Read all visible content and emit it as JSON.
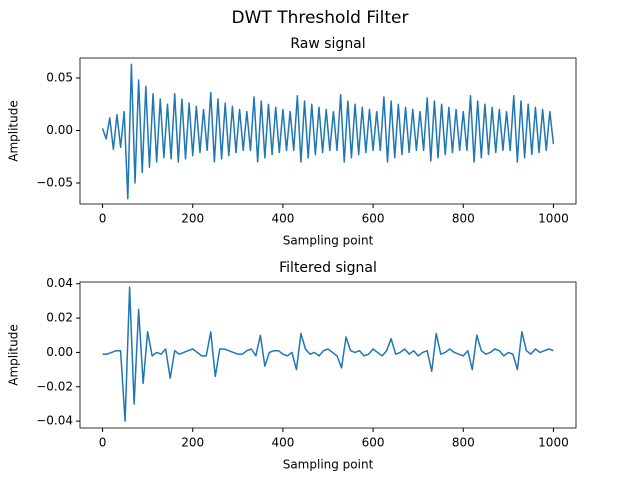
{
  "title": "DWT Threshold Filter",
  "chart_data": [
    {
      "type": "line",
      "title": "Raw signal",
      "xlabel": "Sampling point",
      "ylabel": "Amplitude",
      "xlim": [
        -50,
        1050
      ],
      "ylim": [
        -0.07,
        0.069
      ],
      "xticks": [
        0,
        200,
        400,
        600,
        800,
        1000
      ],
      "yticks": [
        {
          "value": -0.05,
          "label": "−0.05"
        },
        {
          "value": 0,
          "label": "0.00"
        },
        {
          "value": 0.05,
          "label": "0.05"
        }
      ],
      "grid": false,
      "x": [
        0,
        8,
        16,
        24,
        32,
        40,
        48,
        56,
        64,
        72,
        80,
        88,
        96,
        104,
        112,
        120,
        128,
        136,
        144,
        152,
        160,
        168,
        176,
        184,
        192,
        200,
        208,
        216,
        224,
        232,
        240,
        248,
        256,
        264,
        272,
        280,
        288,
        296,
        304,
        312,
        320,
        328,
        336,
        344,
        352,
        360,
        368,
        376,
        384,
        392,
        400,
        408,
        416,
        424,
        432,
        440,
        448,
        456,
        464,
        472,
        480,
        488,
        496,
        504,
        512,
        520,
        528,
        536,
        544,
        552,
        560,
        568,
        576,
        584,
        592,
        600,
        608,
        616,
        624,
        632,
        640,
        648,
        656,
        664,
        672,
        680,
        688,
        696,
        704,
        712,
        720,
        728,
        736,
        744,
        752,
        760,
        768,
        776,
        784,
        792,
        800,
        808,
        816,
        824,
        832,
        840,
        848,
        856,
        864,
        872,
        880,
        888,
        896,
        904,
        912,
        920,
        928,
        936,
        944,
        952,
        960,
        968,
        976,
        984,
        992,
        1000
      ],
      "series": [
        {
          "color": "#1f77b4",
          "values": [
            0.002,
            -0.008,
            0.012,
            -0.018,
            0.015,
            -0.016,
            0.018,
            -0.065,
            0.063,
            -0.05,
            0.048,
            -0.04,
            0.042,
            -0.035,
            0.035,
            -0.03,
            0.03,
            -0.026,
            0.025,
            -0.027,
            0.035,
            -0.03,
            0.03,
            -0.027,
            0.026,
            -0.024,
            0.023,
            -0.021,
            0.02,
            -0.019,
            0.036,
            -0.03,
            0.03,
            -0.027,
            0.026,
            -0.024,
            0.023,
            -0.021,
            0.02,
            -0.019,
            0.018,
            -0.019,
            0.032,
            -0.03,
            0.028,
            -0.026,
            0.025,
            -0.023,
            0.022,
            -0.021,
            0.02,
            -0.019,
            0.018,
            -0.019,
            0.033,
            -0.03,
            0.028,
            -0.026,
            0.025,
            -0.023,
            0.022,
            -0.021,
            0.02,
            -0.019,
            0.018,
            -0.019,
            0.034,
            -0.03,
            0.028,
            -0.026,
            0.025,
            -0.023,
            0.022,
            -0.021,
            0.02,
            -0.019,
            0.018,
            -0.019,
            0.032,
            -0.03,
            0.028,
            -0.026,
            0.025,
            -0.023,
            0.022,
            -0.021,
            0.02,
            -0.019,
            0.018,
            -0.019,
            0.031,
            -0.029,
            0.028,
            -0.026,
            0.025,
            -0.023,
            0.022,
            -0.021,
            0.02,
            -0.019,
            0.018,
            -0.019,
            0.033,
            -0.03,
            0.028,
            -0.026,
            0.025,
            -0.023,
            0.022,
            -0.021,
            0.02,
            -0.019,
            0.018,
            -0.019,
            0.033,
            -0.03,
            0.028,
            -0.026,
            0.025,
            -0.023,
            0.022,
            -0.021,
            0.02,
            -0.019,
            0.018,
            -0.013
          ]
        }
      ]
    },
    {
      "type": "line",
      "title": "Filtered signal",
      "xlabel": "Sampling point",
      "ylabel": "Amplitude",
      "xlim": [
        -50,
        1050
      ],
      "ylim": [
        -0.044,
        0.041
      ],
      "xticks": [
        0,
        200,
        400,
        600,
        800,
        1000
      ],
      "yticks": [
        {
          "value": -0.04,
          "label": "−0.04"
        },
        {
          "value": -0.02,
          "label": "−0.02"
        },
        {
          "value": 0,
          "label": "0.00"
        },
        {
          "value": 0.02,
          "label": "0.02"
        },
        {
          "value": 0.04,
          "label": "0.04"
        }
      ],
      "grid": false,
      "x": [
        0,
        10,
        20,
        30,
        40,
        50,
        60,
        70,
        80,
        90,
        100,
        110,
        120,
        130,
        140,
        150,
        160,
        170,
        180,
        190,
        200,
        210,
        220,
        230,
        240,
        250,
        260,
        270,
        280,
        290,
        300,
        310,
        320,
        330,
        340,
        350,
        360,
        370,
        380,
        390,
        400,
        410,
        420,
        430,
        440,
        450,
        460,
        470,
        480,
        490,
        500,
        510,
        520,
        530,
        540,
        550,
        560,
        570,
        580,
        590,
        600,
        610,
        620,
        630,
        640,
        650,
        660,
        670,
        680,
        690,
        700,
        710,
        720,
        730,
        740,
        750,
        760,
        770,
        780,
        790,
        800,
        810,
        820,
        830,
        840,
        850,
        860,
        870,
        880,
        890,
        900,
        910,
        920,
        930,
        940,
        950,
        960,
        970,
        980,
        990,
        1000
      ],
      "series": [
        {
          "color": "#1f77b4",
          "values": [
            -0.001,
            -0.001,
            0,
            0.001,
            0.001,
            -0.04,
            0.038,
            -0.03,
            0.025,
            -0.018,
            0.012,
            -0.002,
            0,
            -0.001,
            0.002,
            -0.015,
            0.001,
            -0.001,
            0,
            0.001,
            0.002,
            0,
            -0.002,
            -0.002,
            0.012,
            -0.014,
            0.002,
            0.002,
            0.001,
            0,
            -0.001,
            -0.001,
            0.001,
            0.002,
            -0.002,
            0.01,
            -0.008,
            0,
            0.001,
            0.001,
            -0.001,
            -0.002,
            0,
            -0.01,
            0.011,
            0.002,
            -0.001,
            0,
            -0.002,
            0.001,
            0.002,
            0,
            -0.002,
            -0.009,
            0.009,
            0.001,
            0,
            0.001,
            -0.002,
            -0.001,
            0.002,
            0,
            -0.002,
            0.001,
            0.008,
            -0.001,
            0,
            0.002,
            -0.001,
            0.001,
            -0.002,
            0,
            0.001,
            -0.011,
            0.011,
            -0.001,
            0,
            0.002,
            0,
            -0.001,
            -0.002,
            0.001,
            -0.01,
            0.01,
            0.001,
            -0.001,
            0,
            0.002,
            0.001,
            -0.002,
            0,
            -0.001,
            -0.01,
            0.012,
            0.001,
            -0.001,
            0.002,
            0,
            0.001,
            0.002,
            0.001
          ]
        }
      ]
    }
  ]
}
